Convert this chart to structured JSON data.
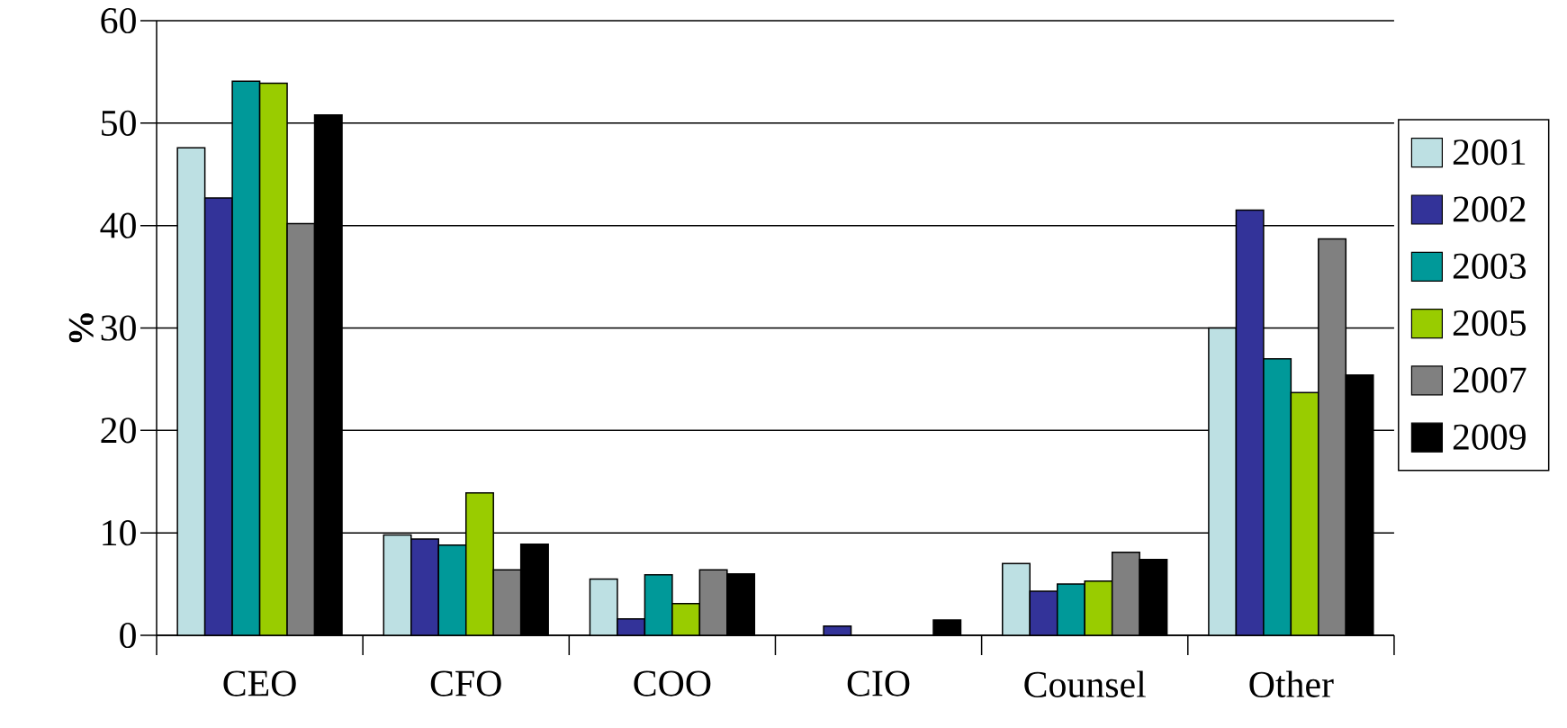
{
  "chart_data": {
    "type": "bar",
    "ylabel": "%",
    "categories": [
      "CEO",
      "CFO",
      "COO",
      "CIO",
      "Counsel",
      "Other"
    ],
    "series": [
      {
        "name": "2001",
        "color": "#bde0e3",
        "values": [
          47.6,
          9.8,
          5.5,
          null,
          7.0,
          30.0
        ]
      },
      {
        "name": "2002",
        "color": "#333399",
        "values": [
          42.7,
          9.4,
          1.6,
          0.9,
          4.3,
          41.5
        ]
      },
      {
        "name": "2003",
        "color": "#009999",
        "values": [
          54.1,
          8.8,
          5.9,
          null,
          5.0,
          27.0
        ]
      },
      {
        "name": "2005",
        "color": "#99cc00",
        "values": [
          53.9,
          13.9,
          3.1,
          null,
          5.3,
          23.7
        ]
      },
      {
        "name": "2007",
        "color": "#808080",
        "values": [
          40.2,
          6.4,
          6.4,
          null,
          8.1,
          38.7
        ]
      },
      {
        "name": "2009",
        "color": "#000000",
        "values": [
          50.8,
          8.9,
          6.0,
          1.5,
          7.4,
          25.4
        ]
      }
    ],
    "ylim": [
      0,
      60
    ],
    "yticks": [
      0,
      10,
      20,
      30,
      40,
      50,
      60
    ],
    "grid": "y",
    "legend": "right"
  }
}
